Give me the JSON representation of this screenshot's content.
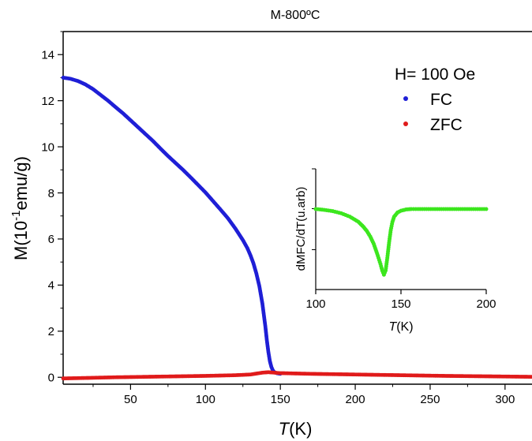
{
  "chart_data": [
    {
      "type": "scatter",
      "title": "M-800ºC",
      "xlabel_italic": "T",
      "xlabel_rest": "(K)",
      "ylabel_main": "M(10",
      "ylabel_sup": "-1",
      "ylabel_rest": "emu/g)",
      "xlim": [
        5,
        318
      ],
      "ylim": [
        -0.3,
        15
      ],
      "x_ticks": [
        50,
        100,
        150,
        200,
        250,
        300
      ],
      "y_ticks": [
        0,
        2,
        4,
        6,
        8,
        10,
        12,
        14
      ],
      "legend_title": "H= 100 Oe",
      "legend_placement": "top-right",
      "series": [
        {
          "name": "FC",
          "color": "#1f1fd6",
          "points": [
            [
              5,
              13.0
            ],
            [
              10,
              12.95
            ],
            [
              15,
              12.85
            ],
            [
              20,
              12.7
            ],
            [
              25,
              12.5
            ],
            [
              30,
              12.25
            ],
            [
              35,
              12.0
            ],
            [
              40,
              11.72
            ],
            [
              45,
              11.45
            ],
            [
              50,
              11.15
            ],
            [
              55,
              10.85
            ],
            [
              60,
              10.55
            ],
            [
              65,
              10.25
            ],
            [
              70,
              9.92
            ],
            [
              75,
              9.6
            ],
            [
              80,
              9.3
            ],
            [
              85,
              9.0
            ],
            [
              90,
              8.68
            ],
            [
              95,
              8.35
            ],
            [
              100,
              8.02
            ],
            [
              105,
              7.65
            ],
            [
              110,
              7.28
            ],
            [
              115,
              6.9
            ],
            [
              120,
              6.45
            ],
            [
              125,
              5.95
            ],
            [
              128,
              5.6
            ],
            [
              130,
              5.3
            ],
            [
              132,
              4.95
            ],
            [
              134,
              4.5
            ],
            [
              136,
              3.95
            ],
            [
              138,
              3.2
            ],
            [
              140,
              2.2
            ],
            [
              141,
              1.6
            ],
            [
              142,
              1.1
            ],
            [
              143,
              0.7
            ],
            [
              144,
              0.45
            ],
            [
              145,
              0.3
            ],
            [
              146,
              0.22
            ],
            [
              148,
              0.17
            ],
            [
              150,
              0.15
            ]
          ]
        },
        {
          "name": "ZFC",
          "color": "#e01b1b",
          "points": [
            [
              5,
              -0.05
            ],
            [
              20,
              -0.03
            ],
            [
              40,
              0.0
            ],
            [
              60,
              0.02
            ],
            [
              80,
              0.04
            ],
            [
              100,
              0.06
            ],
            [
              120,
              0.09
            ],
            [
              130,
              0.12
            ],
            [
              138,
              0.2
            ],
            [
              142,
              0.22
            ],
            [
              146,
              0.2
            ],
            [
              150,
              0.18
            ],
            [
              170,
              0.15
            ],
            [
              200,
              0.12
            ],
            [
              230,
              0.09
            ],
            [
              260,
              0.06
            ],
            [
              290,
              0.04
            ],
            [
              318,
              0.02
            ]
          ]
        }
      ]
    },
    {
      "type": "scatter",
      "title": "",
      "ylabel": "dMFC/dT(u.arb)",
      "xlabel_italic": "T",
      "xlabel_rest": "(K)",
      "xlim": [
        100,
        200
      ],
      "ylim": [
        -1.9,
        0.95
      ],
      "x_ticks": [
        100,
        150,
        200
      ],
      "series": [
        {
          "name": "dMFC/dT",
          "color": "#3ce61e",
          "points": [
            [
              100,
              0.0
            ],
            [
              105,
              -0.02
            ],
            [
              110,
              -0.05
            ],
            [
              115,
              -0.1
            ],
            [
              120,
              -0.18
            ],
            [
              125,
              -0.3
            ],
            [
              128,
              -0.42
            ],
            [
              130,
              -0.52
            ],
            [
              132,
              -0.65
            ],
            [
              134,
              -0.82
            ],
            [
              136,
              -1.05
            ],
            [
              138,
              -1.3
            ],
            [
              139,
              -1.45
            ],
            [
              140,
              -1.55
            ],
            [
              141,
              -1.45
            ],
            [
              142,
              -1.15
            ],
            [
              143,
              -0.8
            ],
            [
              144,
              -0.5
            ],
            [
              145,
              -0.3
            ],
            [
              146,
              -0.18
            ],
            [
              148,
              -0.08
            ],
            [
              150,
              -0.04
            ],
            [
              153,
              -0.01
            ],
            [
              156,
              0.0
            ],
            [
              160,
              0.0
            ],
            [
              170,
              0.0
            ],
            [
              180,
              0.0
            ],
            [
              190,
              0.0
            ],
            [
              200,
              0.0
            ]
          ]
        }
      ]
    }
  ]
}
